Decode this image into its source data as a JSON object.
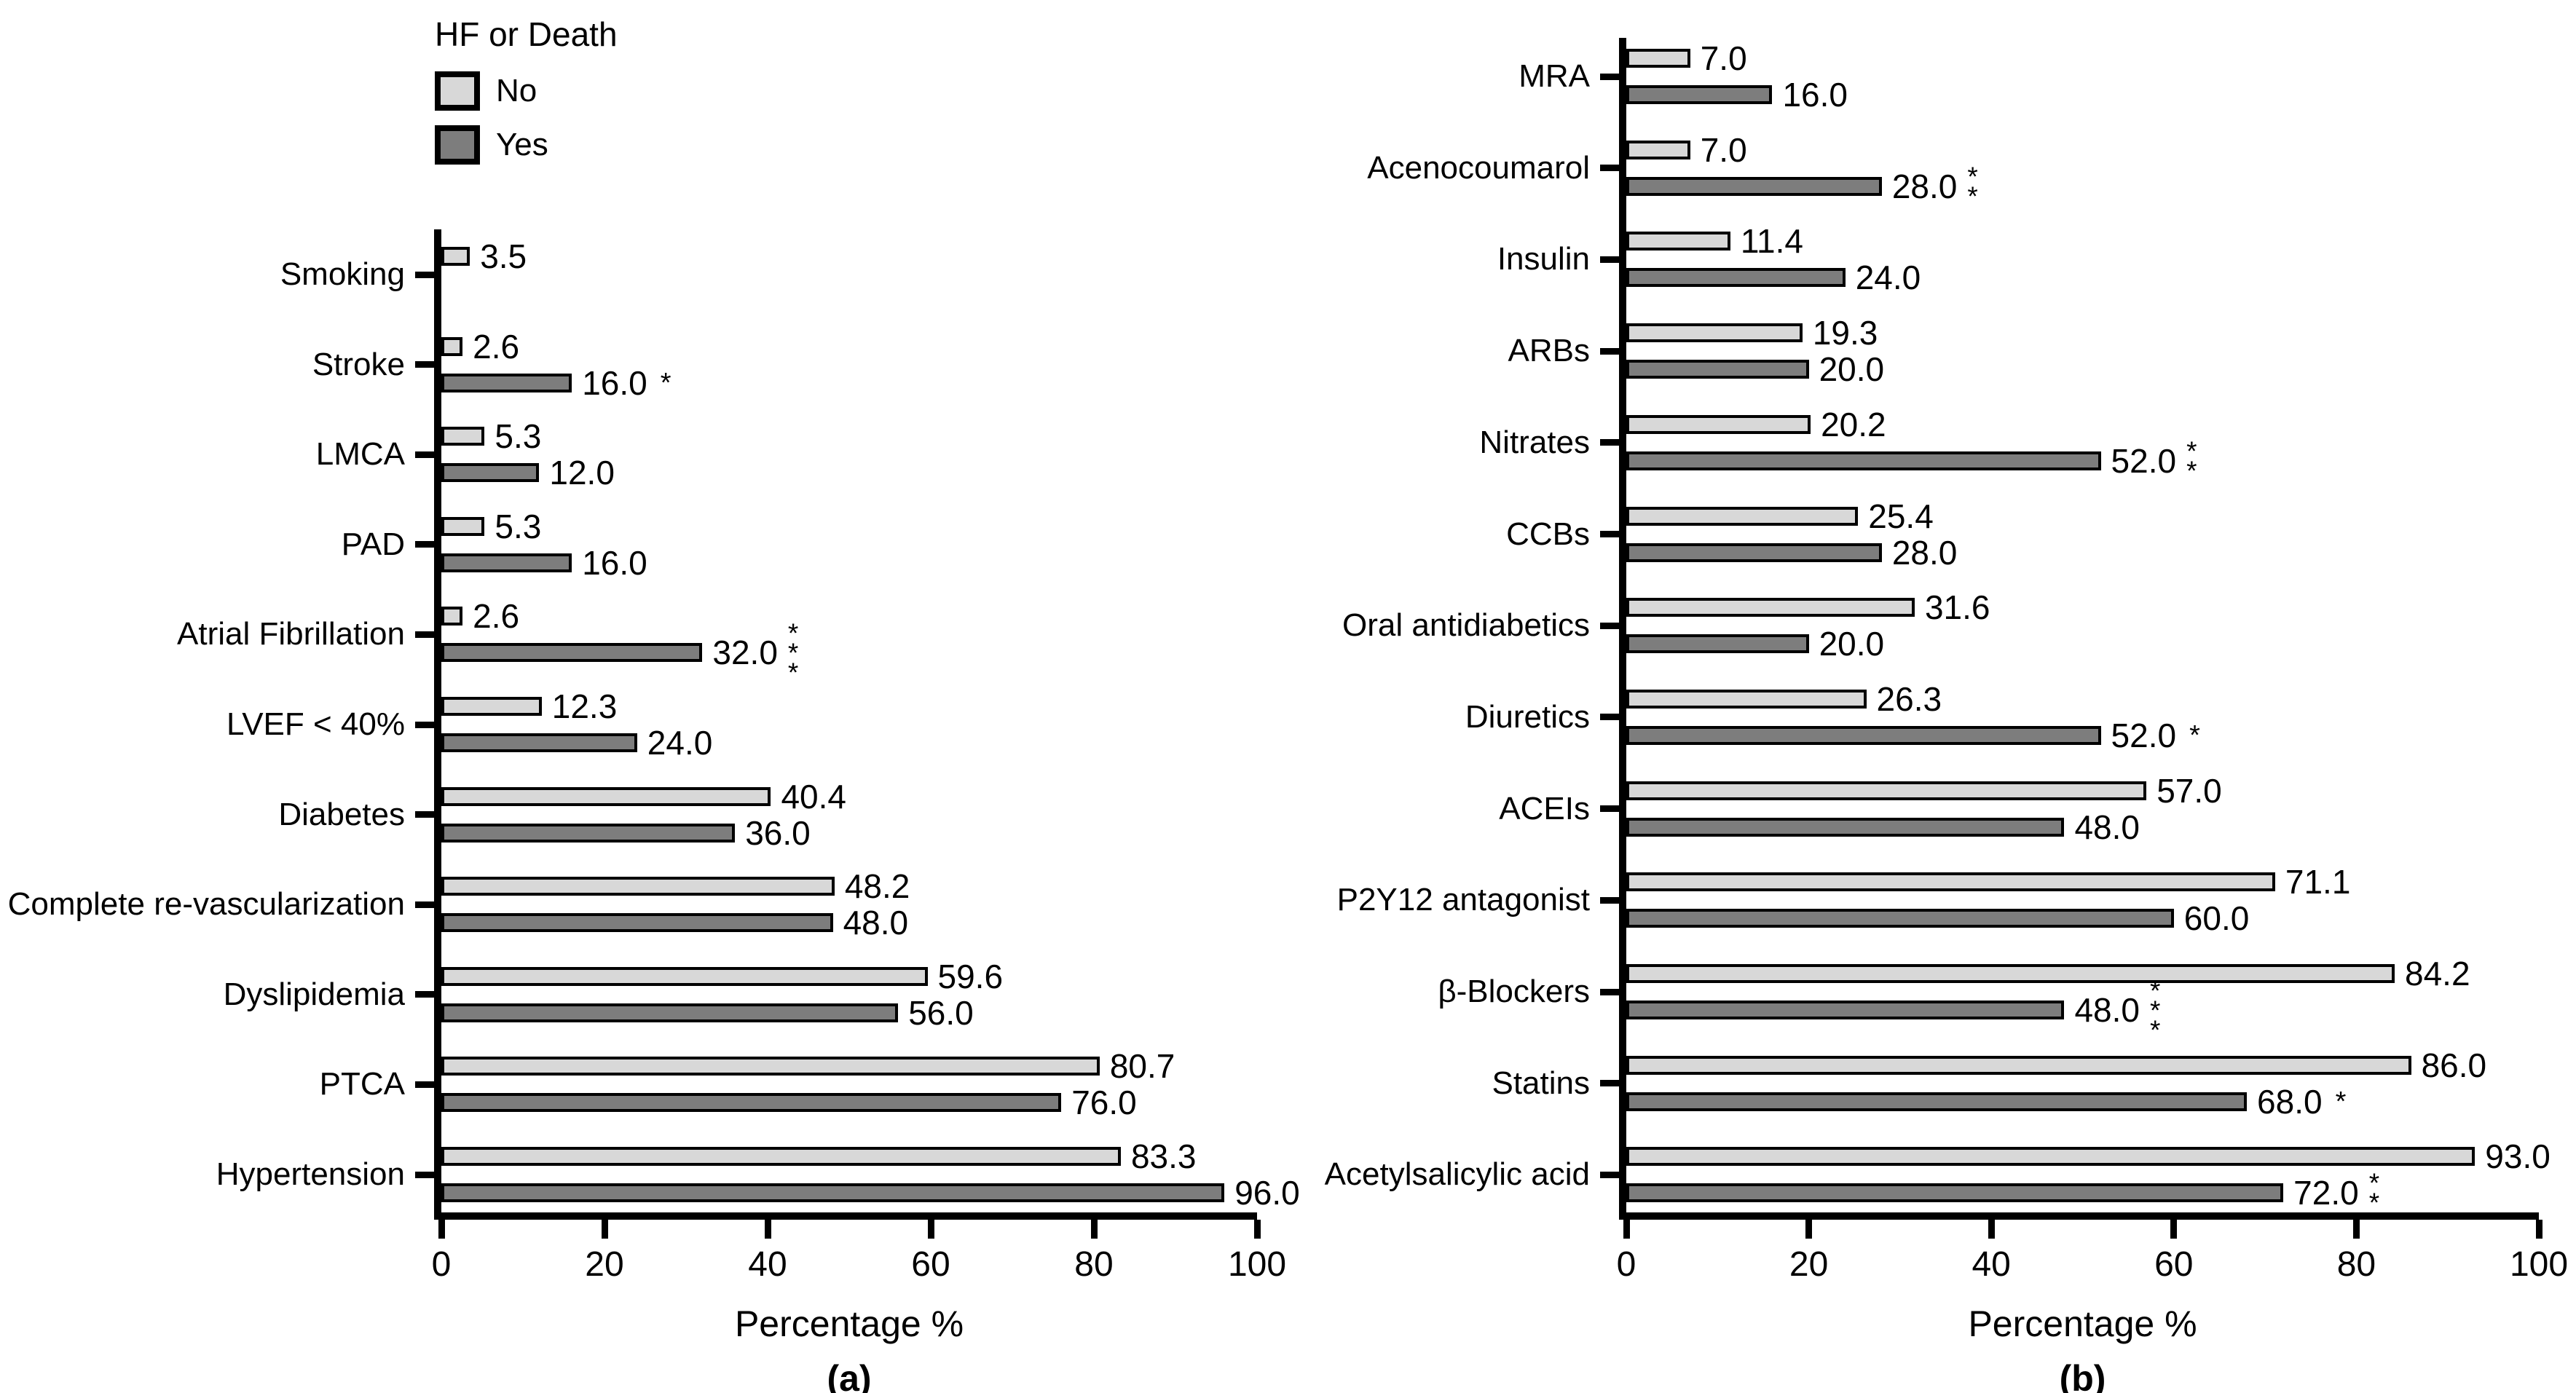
{
  "legend": {
    "title": "HF or Death",
    "items": [
      {
        "label": "No",
        "color": "#d8d8d8"
      },
      {
        "label": "Yes",
        "color": "#7d7d7d"
      }
    ]
  },
  "colors": {
    "no_fill": "#d8d8d8",
    "yes_fill": "#7d7d7d",
    "outline": "#000000"
  },
  "chart_data": [
    {
      "type": "bar",
      "orientation": "horizontal",
      "panel": "(a)",
      "xlabel": "Percentage %",
      "xlim": [
        0,
        100
      ],
      "xticks": [
        0,
        20,
        40,
        60,
        80,
        100
      ],
      "grid": false,
      "legend_position": "top-left-outside",
      "series": [
        "No",
        "Yes"
      ],
      "rows": [
        {
          "category": "Smoking",
          "no": 3.5,
          "yes": null,
          "yes_sig": ""
        },
        {
          "category": "Stroke",
          "no": 2.6,
          "yes": 16.0,
          "yes_sig": "*"
        },
        {
          "category": "LMCA",
          "no": 5.3,
          "yes": 12.0,
          "yes_sig": ""
        },
        {
          "category": "PAD",
          "no": 5.3,
          "yes": 16.0,
          "yes_sig": ""
        },
        {
          "category": "Atrial Fibrillation",
          "no": 2.6,
          "yes": 32.0,
          "yes_sig": "***"
        },
        {
          "category": "LVEF < 40%",
          "no": 12.3,
          "yes": 24.0,
          "yes_sig": ""
        },
        {
          "category": "Diabetes",
          "no": 40.4,
          "yes": 36.0,
          "yes_sig": ""
        },
        {
          "category": "Complete re-vascularization",
          "no": 48.2,
          "yes": 48.0,
          "yes_sig": ""
        },
        {
          "category": "Dyslipidemia",
          "no": 59.6,
          "yes": 56.0,
          "yes_sig": ""
        },
        {
          "category": "PTCA",
          "no": 80.7,
          "yes": 76.0,
          "yes_sig": ""
        },
        {
          "category": "Hypertension",
          "no": 83.3,
          "yes": 96.0,
          "yes_sig": ""
        }
      ]
    },
    {
      "type": "bar",
      "orientation": "horizontal",
      "panel": "(b)",
      "xlabel": "Percentage %",
      "xlim": [
        0,
        100
      ],
      "xticks": [
        0,
        20,
        40,
        60,
        80,
        100
      ],
      "grid": false,
      "series": [
        "No",
        "Yes"
      ],
      "rows": [
        {
          "category": "MRA",
          "no": 7.0,
          "yes": 16.0,
          "yes_sig": ""
        },
        {
          "category": "Acenocoumarol",
          "no": 7.0,
          "yes": 28.0,
          "yes_sig": "**"
        },
        {
          "category": "Insulin",
          "no": 11.4,
          "yes": 24.0,
          "yes_sig": ""
        },
        {
          "category": "ARBs",
          "no": 19.3,
          "yes": 20.0,
          "yes_sig": ""
        },
        {
          "category": "Nitrates",
          "no": 20.2,
          "yes": 52.0,
          "yes_sig": "**"
        },
        {
          "category": "CCBs",
          "no": 25.4,
          "yes": 28.0,
          "yes_sig": ""
        },
        {
          "category": "Oral antidiabetics",
          "no": 31.6,
          "yes": 20.0,
          "yes_sig": ""
        },
        {
          "category": "Diuretics",
          "no": 26.3,
          "yes": 52.0,
          "yes_sig": "*"
        },
        {
          "category": "ACEIs",
          "no": 57.0,
          "yes": 48.0,
          "yes_sig": ""
        },
        {
          "category": "P2Y12 antagonist",
          "no": 71.1,
          "yes": 60.0,
          "yes_sig": ""
        },
        {
          "category": "β-Blockers",
          "no": 84.2,
          "yes": 48.0,
          "yes_sig": "***"
        },
        {
          "category": "Statins",
          "no": 86.0,
          "yes": 68.0,
          "yes_sig": "*"
        },
        {
          "category": "Acetylsalicylic acid",
          "no": 93.0,
          "yes": 72.0,
          "yes_sig": "**"
        }
      ]
    }
  ]
}
